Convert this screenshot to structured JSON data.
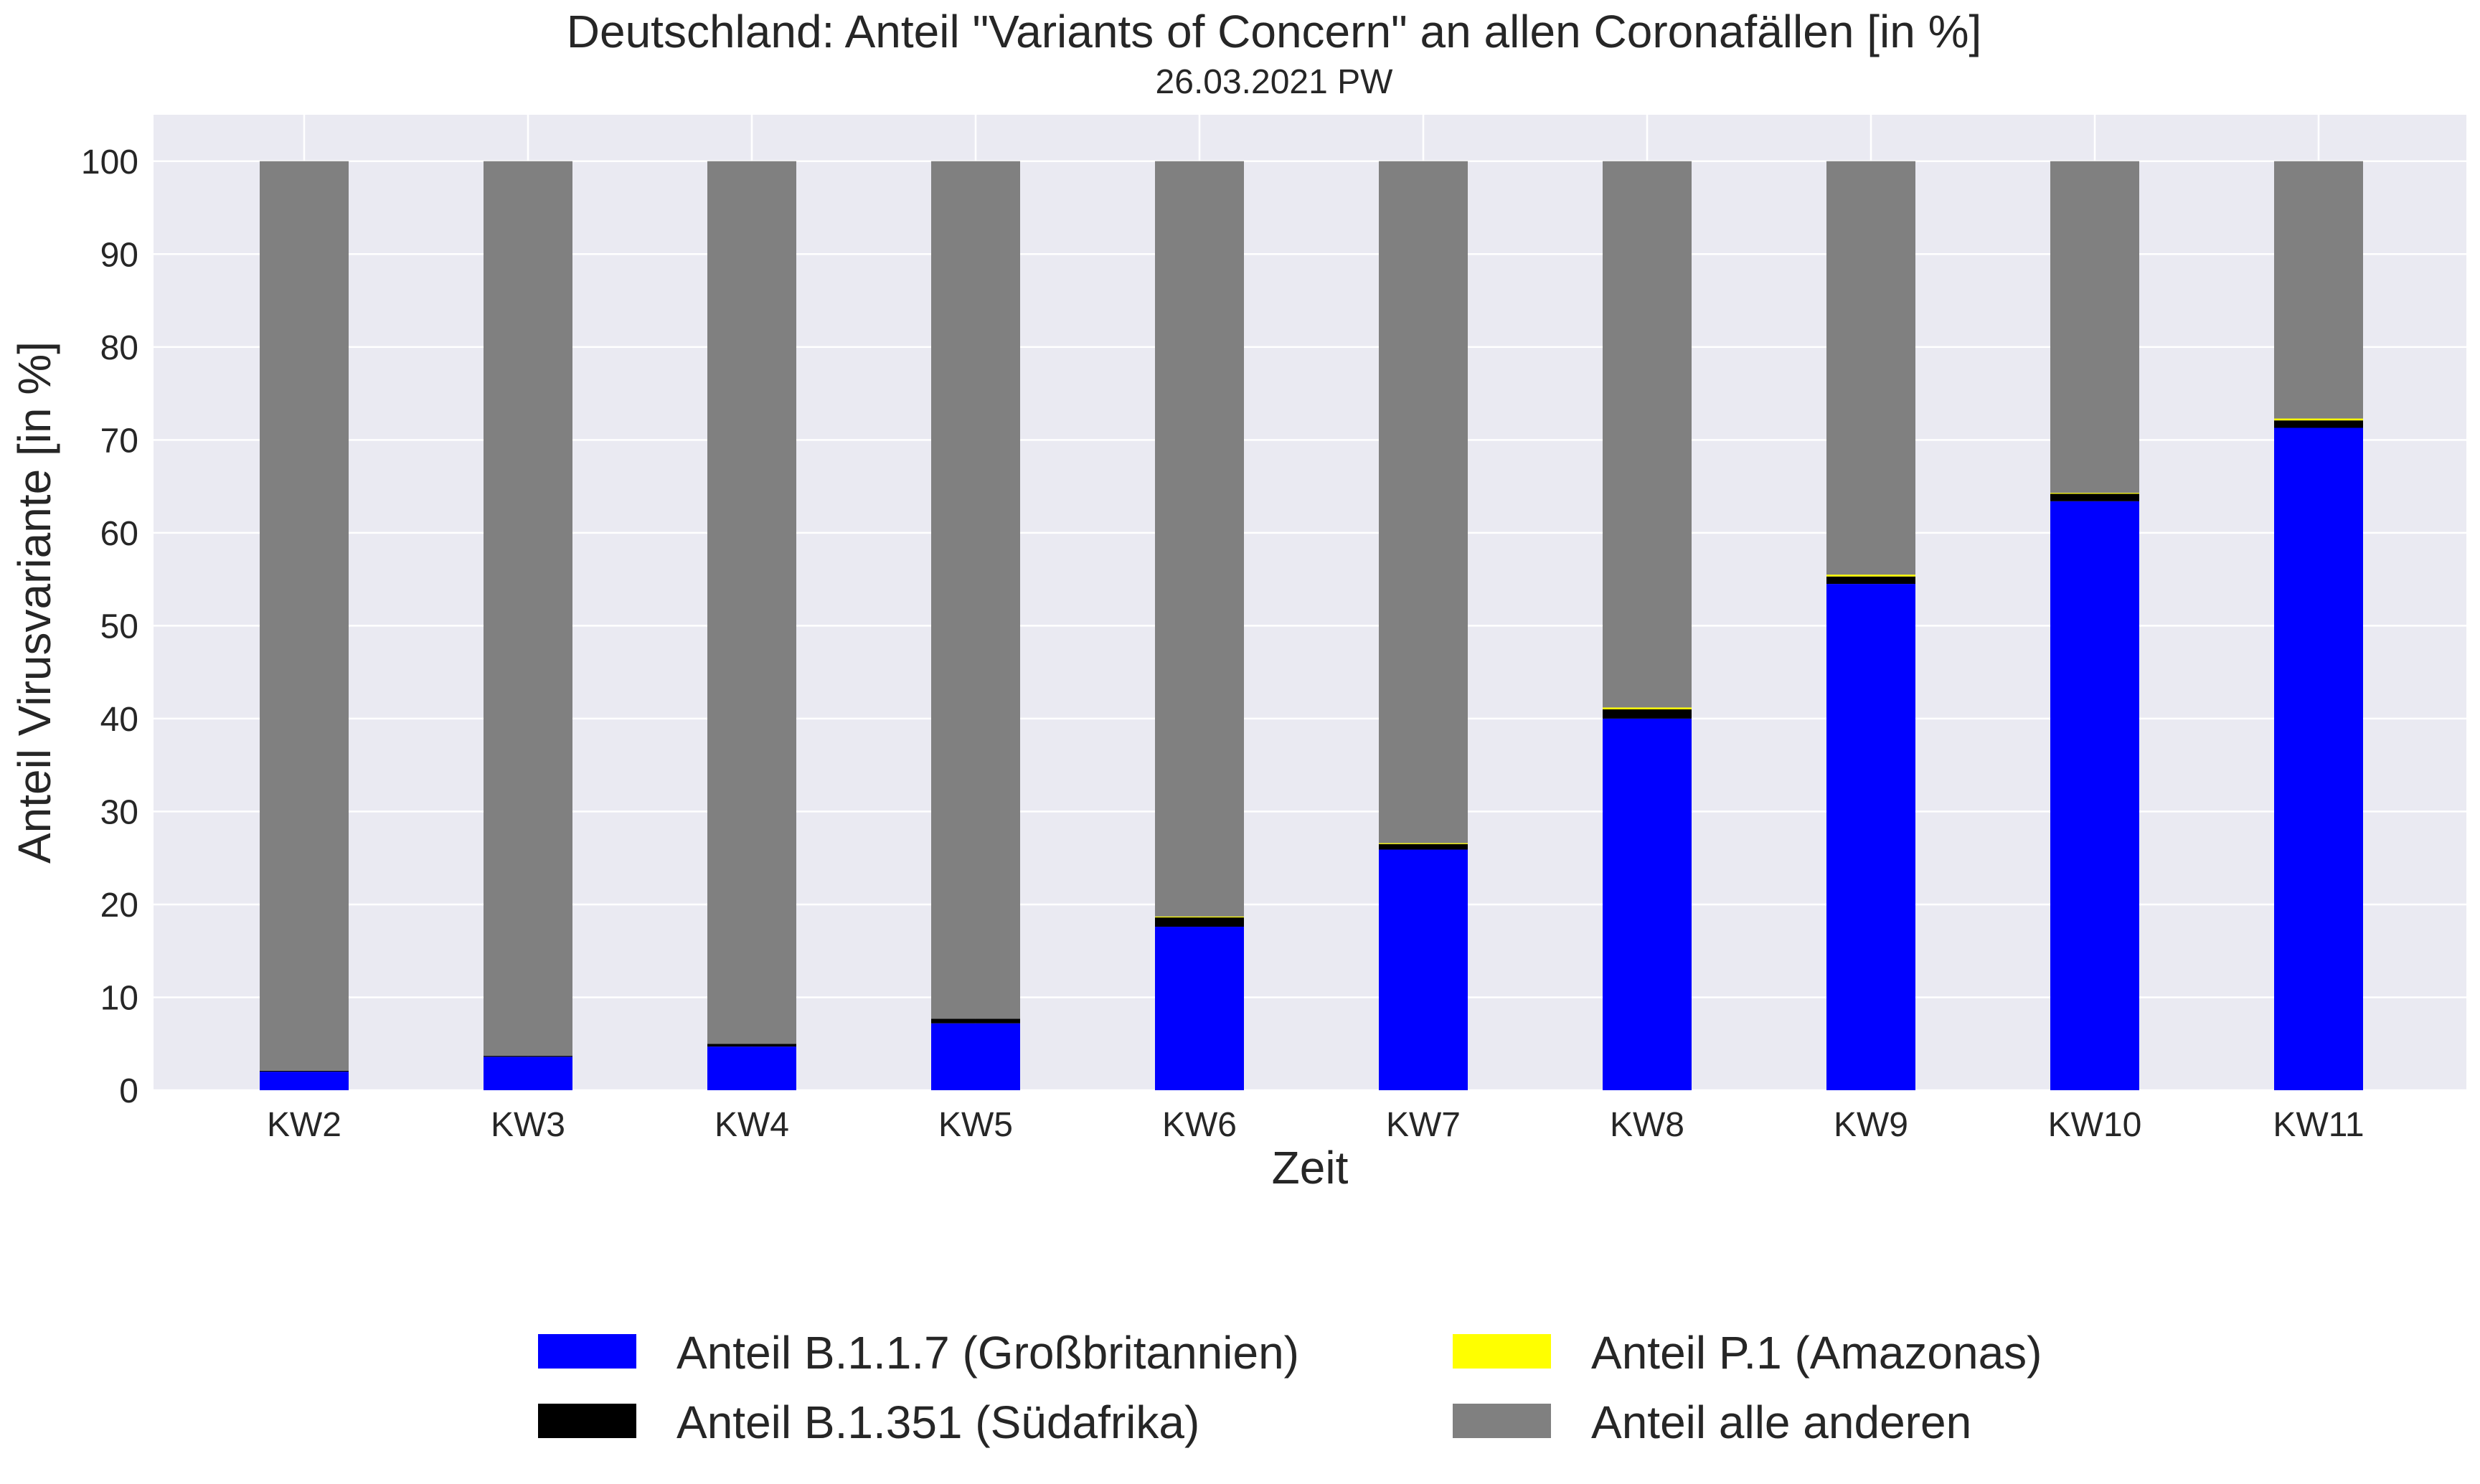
{
  "chart_data": {
    "type": "bar",
    "stacked": true,
    "title": "Deutschland: Anteil \"Variants of Concern\" an allen Coronafällen [in %]",
    "subtitle": "26.03.2021 PW",
    "xlabel": "Zeit",
    "ylabel": "Anteil Virusvariante [in %]",
    "ylim": [
      0,
      105
    ],
    "yticks": [
      "0",
      "10",
      "20",
      "30",
      "40",
      "50",
      "60",
      "70",
      "80",
      "90",
      "100"
    ],
    "grid": true,
    "legend_position": "bottom",
    "categories": [
      "KW2",
      "KW3",
      "KW4",
      "KW5",
      "KW6",
      "KW7",
      "KW8",
      "KW9",
      "KW10",
      "KW11"
    ],
    "series": [
      {
        "name": "Anteil B.1.1.7 (Großbritannien)",
        "color": "#0000ff",
        "values": [
          2.0,
          3.6,
          4.7,
          7.2,
          17.6,
          25.9,
          40.0,
          54.5,
          63.4,
          71.3
        ]
      },
      {
        "name": "Anteil B.1.351 (Südafrika)",
        "color": "#000000",
        "values": [
          0.1,
          0.1,
          0.3,
          0.5,
          1.0,
          0.6,
          1.0,
          0.8,
          0.8,
          0.8
        ]
      },
      {
        "name": "Anteil P.1 (Amazonas)",
        "color": "#ffff00",
        "values": [
          0.0,
          0.0,
          0.0,
          0.0,
          0.1,
          0.1,
          0.2,
          0.2,
          0.1,
          0.2
        ]
      },
      {
        "name": "Anteil alle anderen",
        "color": "#808080",
        "values": [
          97.9,
          96.3,
          95.0,
          92.3,
          81.3,
          73.4,
          58.8,
          44.5,
          35.7,
          27.7
        ]
      }
    ]
  },
  "colors": {
    "plot_background": "#eaeaf2",
    "grid": "#ffffff",
    "text": "#262626"
  }
}
